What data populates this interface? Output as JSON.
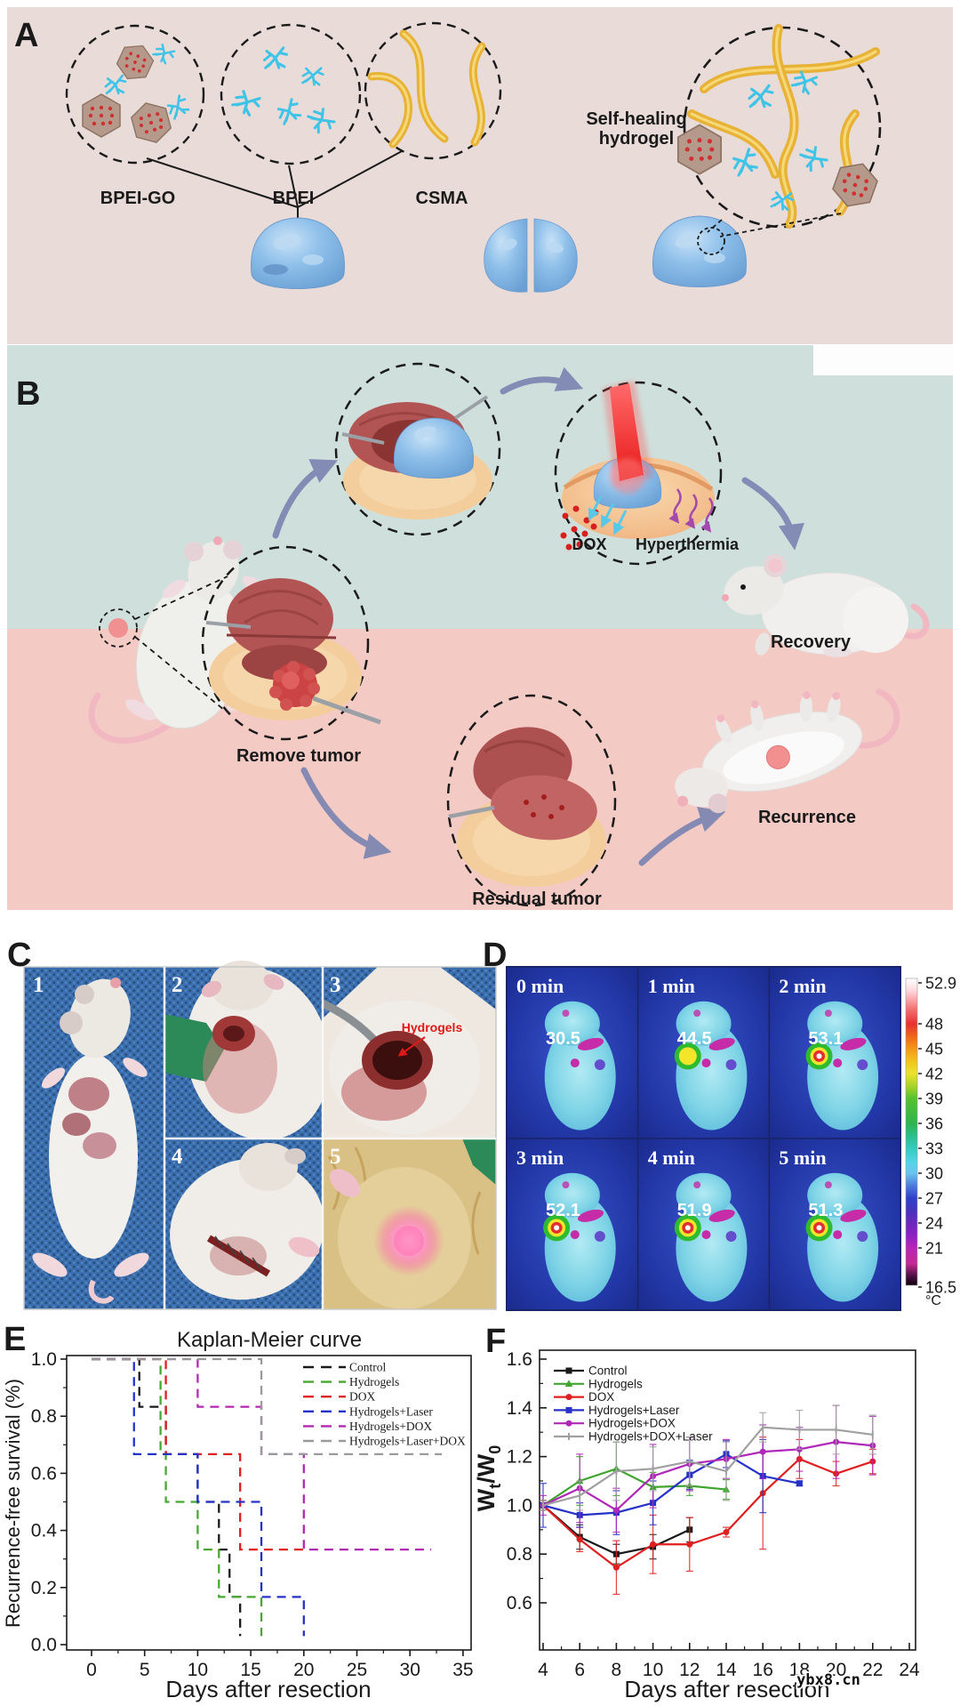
{
  "figure": {
    "panels": {
      "A": {
        "label": "A",
        "molecule_labels": {
          "bpei_go": "BPEI-GO",
          "bpei": "BPEI",
          "csma": "CSMA"
        },
        "hydrogel_caption_line1": "Self-healing",
        "hydrogel_caption_line2": "hydrogel"
      },
      "B": {
        "label": "B",
        "steps": {
          "remove_tumor": "Remove tumor",
          "dox": "DOX",
          "hyperthermia": "Hyperthermia",
          "recovery": "Recovery",
          "residual_tumor": "Residual tumor",
          "recurrence": "Recurrence"
        }
      },
      "C": {
        "label": "C",
        "photo_numbers": [
          "1",
          "2",
          "3",
          "4",
          "5"
        ],
        "annotation": "Hydrogels"
      },
      "D": {
        "label": "D",
        "frames": [
          {
            "time": "0 min",
            "temp": "30.5"
          },
          {
            "time": "1 min",
            "temp": "44.5"
          },
          {
            "time": "2 min",
            "temp": "53.1"
          },
          {
            "time": "3 min",
            "temp": "52.1"
          },
          {
            "time": "4 min",
            "temp": "51.9"
          },
          {
            "time": "5 min",
            "temp": "51.3"
          }
        ],
        "colorbar": {
          "ticks": [
            "52.9",
            "48",
            "45",
            "42",
            "39",
            "36",
            "33",
            "30",
            "27",
            "24",
            "21",
            "16.5"
          ],
          "unit": "°C"
        }
      }
    },
    "watermark": "ybx8.cn",
    "colors": {
      "panel_a_bg": "#e8dbd8",
      "panel_b_teal_bg": "#cfe0dc",
      "panel_b_pink_bg": "#f4cac5",
      "hydrogel_blue": "#8fc0ea",
      "csma_yellow": "#e7b235",
      "bpei_cyan": "#3fc4e8",
      "laser_red": "#e81818"
    }
  },
  "chart_data": [
    {
      "id": "E",
      "panel_label": "E",
      "type": "line",
      "subtype": "kaplan-meier-step",
      "title": "Kaplan-Meier curve",
      "xlabel": "Days after resection",
      "ylabel": "Recurrence-free survival (%)",
      "xlim": [
        0,
        35
      ],
      "ylim": [
        0.0,
        1.0
      ],
      "xticks": [
        0,
        5,
        10,
        15,
        20,
        25,
        30,
        35
      ],
      "ytick_labels": [
        "0.0",
        "0.2",
        "0.4",
        "0.6",
        "0.8",
        "1.0"
      ],
      "grid": false,
      "legend_position": "top-right",
      "line_style": "dashed",
      "series": [
        {
          "name": "Control",
          "color": "#1a1a1a",
          "steps": [
            [
              0,
              1
            ],
            [
              4.5,
              1
            ],
            [
              4.5,
              0.833
            ],
            [
              7,
              0.833
            ],
            [
              7,
              0.667
            ],
            [
              10,
              0.667
            ],
            [
              10,
              0.5
            ],
            [
              12,
              0.5
            ],
            [
              12,
              0.333
            ],
            [
              13,
              0.333
            ],
            [
              13,
              0.167
            ],
            [
              14,
              0.167
            ],
            [
              14,
              0.03
            ]
          ]
        },
        {
          "name": "Hydrogels",
          "color": "#46a832",
          "steps": [
            [
              0,
              1
            ],
            [
              6.5,
              1
            ],
            [
              6.5,
              0.667
            ],
            [
              7,
              0.667
            ],
            [
              7,
              0.5
            ],
            [
              10,
              0.5
            ],
            [
              10,
              0.333
            ],
            [
              12,
              0.333
            ],
            [
              12,
              0.167
            ],
            [
              16,
              0.167
            ],
            [
              16,
              0.03
            ]
          ]
        },
        {
          "name": "DOX",
          "color": "#e02020",
          "steps": [
            [
              0,
              1
            ],
            [
              7,
              1
            ],
            [
              7,
              0.667
            ],
            [
              14,
              0.667
            ],
            [
              14,
              0.333
            ],
            [
              20.5,
              0.333
            ]
          ]
        },
        {
          "name": "Hydrogels+Laser",
          "color": "#2631c8",
          "steps": [
            [
              0,
              1
            ],
            [
              4,
              1
            ],
            [
              4,
              0.667
            ],
            [
              10,
              0.667
            ],
            [
              10,
              0.5
            ],
            [
              16,
              0.5
            ],
            [
              16,
              0.167
            ],
            [
              20,
              0.167
            ],
            [
              20,
              0.03
            ]
          ]
        },
        {
          "name": "Hydrogels+DOX",
          "color": "#b328b3",
          "steps": [
            [
              0,
              1
            ],
            [
              10,
              1
            ],
            [
              10,
              0.833
            ],
            [
              16,
              0.833
            ],
            [
              16,
              0.667
            ],
            [
              20,
              0.667
            ],
            [
              20,
              0.333
            ],
            [
              32,
              0.333
            ]
          ]
        },
        {
          "name": "Hydrogels+Laser+DOX",
          "color": "#9a9a9a",
          "steps": [
            [
              0,
              1
            ],
            [
              16,
              1
            ],
            [
              16,
              0.667
            ],
            [
              33,
              0.667
            ]
          ]
        }
      ]
    },
    {
      "id": "F",
      "panel_label": "F",
      "type": "line",
      "xlabel": "Days after resection",
      "ylabel": "Wt/W0",
      "ylabel_parts": [
        "W",
        "t",
        "/W",
        "0"
      ],
      "xlim": [
        4,
        24
      ],
      "ylim": [
        0.6,
        1.6
      ],
      "xticks": [
        4,
        6,
        8,
        10,
        12,
        14,
        16,
        18,
        20,
        22,
        24
      ],
      "ytick_labels": [
        "0.6",
        "0.8",
        "1.0",
        "1.2",
        "1.4",
        "1.6"
      ],
      "grid": false,
      "legend_position": "top-left",
      "series": [
        {
          "name": "Control",
          "color": "#1a1a1a",
          "marker": "square",
          "x": [
            4,
            6,
            8,
            10,
            12
          ],
          "y": [
            1.0,
            0.87,
            0.8,
            0.83,
            0.9
          ],
          "err": [
            0.02,
            0.05,
            0.04,
            0.05,
            0.05
          ]
        },
        {
          "name": "Hydrogels",
          "color": "#3fa52f",
          "marker": "triangle",
          "x": [
            4,
            6,
            8,
            10,
            12,
            14
          ],
          "y": [
            1.0,
            1.1,
            1.15,
            1.075,
            1.08,
            1.065
          ],
          "err": [
            0.02,
            0.1,
            0.11,
            0.06,
            0.04,
            0.04
          ]
        },
        {
          "name": "DOX",
          "color": "#e02020",
          "marker": "circle",
          "x": [
            4,
            6,
            8,
            10,
            12,
            14,
            16,
            18,
            20,
            22
          ],
          "y": [
            1.0,
            0.86,
            0.745,
            0.84,
            0.84,
            0.89,
            1.05,
            1.19,
            1.13,
            1.18
          ],
          "err": [
            0.02,
            0.05,
            0.11,
            0.12,
            0.11,
            0.02,
            0.23,
            0.08,
            0.05,
            0.05
          ]
        },
        {
          "name": "Hydrogels+Laser",
          "color": "#2631c8",
          "marker": "square",
          "x": [
            4,
            6,
            8,
            10,
            12,
            14,
            16,
            18
          ],
          "y": [
            1.0,
            0.96,
            0.97,
            1.01,
            1.125,
            1.21,
            1.12,
            1.09
          ],
          "err": [
            0.09,
            0.05,
            0.09,
            0.09,
            0.06,
            0.055,
            0.15,
            0.01
          ]
        },
        {
          "name": "Hydrogels+DOX",
          "color": "#b028b8",
          "marker": "circle",
          "x": [
            4,
            6,
            8,
            10,
            12,
            14,
            16,
            18,
            20,
            22
          ],
          "y": [
            1.0,
            1.07,
            0.98,
            1.12,
            1.17,
            1.19,
            1.22,
            1.23,
            1.26,
            1.245
          ],
          "err": [
            0.04,
            0.14,
            0.09,
            0.13,
            0.11,
            0.08,
            0.11,
            0.09,
            0.15,
            0.12
          ]
        },
        {
          "name": "Hydrogels+DOX+Laser",
          "color": "#a0a0a0",
          "marker": "tick",
          "x": [
            4,
            6,
            8,
            10,
            12,
            14,
            16,
            18,
            20,
            22
          ],
          "y": [
            1.0,
            1.04,
            1.14,
            1.15,
            1.18,
            1.14,
            1.32,
            1.31,
            1.31,
            1.29
          ],
          "err": [
            0.02,
            0.06,
            0.12,
            0.09,
            0.1,
            0.12,
            0.06,
            0.08,
            0.1,
            0.08
          ]
        }
      ]
    }
  ]
}
